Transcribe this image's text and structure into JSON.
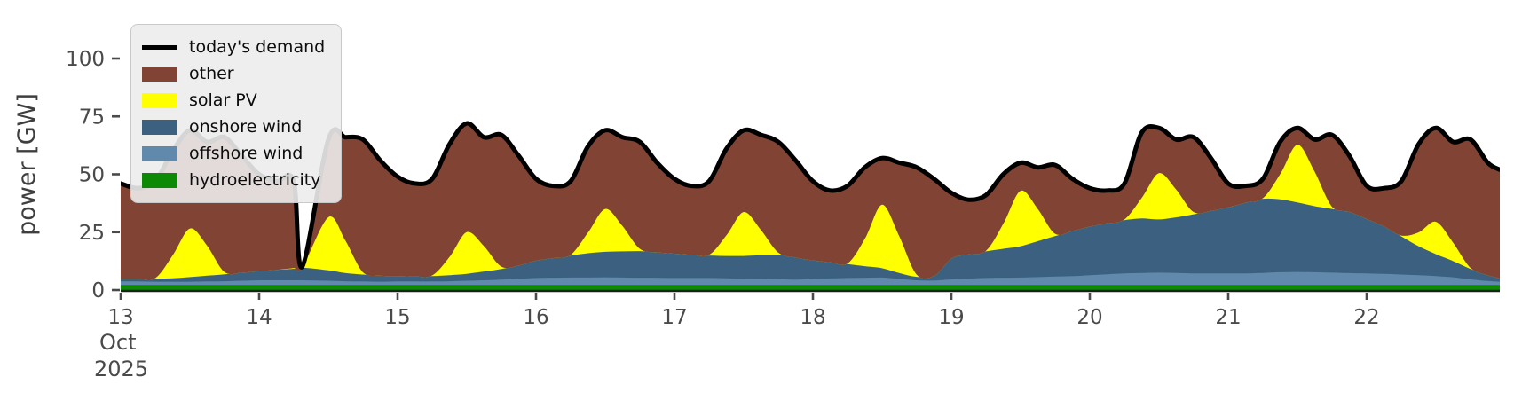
{
  "chart": {
    "ylabel": "power [GW]",
    "x_axis": {
      "month": "Oct",
      "year": "2025",
      "day_ticks": [
        13,
        14,
        15,
        16,
        17,
        18,
        19,
        20,
        21,
        22
      ]
    },
    "y_axis": {
      "ticks": [
        0,
        25,
        50,
        75,
        100
      ]
    },
    "legend": {
      "position": "upper left",
      "items": [
        {
          "label": "today's demand",
          "color": "#000000",
          "swatch": "line"
        },
        {
          "label": "other",
          "color": "#814334",
          "swatch": "rect"
        },
        {
          "label": "solar PV",
          "color": "#ffff00",
          "swatch": "rect"
        },
        {
          "label": "onshore wind",
          "color": "#3b6080",
          "swatch": "rect"
        },
        {
          "label": "offshore wind",
          "color": "#6089ac",
          "swatch": "rect"
        },
        {
          "label": "hydroelectricity",
          "color": "#0c8a06",
          "swatch": "rect"
        }
      ]
    },
    "text_color": "#4a4a4a"
  },
  "chart_data": {
    "type": "area",
    "stacked": true,
    "title": "",
    "xlabel": "",
    "ylabel": "power [GW]",
    "grid": false,
    "legend_position": "upper left",
    "x_unit": "day of October 2025",
    "x_range": [
      13,
      22.96
    ],
    "ylim": [
      0,
      121
    ],
    "note_gap": "all values drop to near zero briefly around Oct 14.31 (data gap notch)",
    "x": [
      13,
      13.125,
      13.25,
      13.375,
      13.5,
      13.625,
      13.75,
      13.875,
      14,
      14.125,
      14.25,
      14.31,
      14.5,
      14.625,
      14.75,
      14.875,
      15,
      15.125,
      15.25,
      15.375,
      15.5,
      15.625,
      15.75,
      15.875,
      16,
      16.125,
      16.25,
      16.375,
      16.5,
      16.625,
      16.75,
      16.875,
      17,
      17.125,
      17.25,
      17.375,
      17.5,
      17.625,
      17.75,
      17.875,
      18,
      18.125,
      18.25,
      18.375,
      18.5,
      18.625,
      18.75,
      18.875,
      19,
      19.125,
      19.25,
      19.375,
      19.5,
      19.625,
      19.75,
      19.875,
      20,
      20.125,
      20.25,
      20.375,
      20.5,
      20.625,
      20.75,
      20.875,
      21,
      21.125,
      21.25,
      21.375,
      21.5,
      21.625,
      21.75,
      21.875,
      22,
      22.125,
      22.25,
      22.375,
      22.5,
      22.625,
      22.75,
      22.875,
      22.96
    ],
    "demand": {
      "name": "today's demand",
      "color": "#000000",
      "values": [
        46,
        44,
        47,
        60,
        69,
        64,
        66,
        58,
        50,
        47,
        47,
        10,
        65,
        66,
        65,
        56,
        49,
        46,
        48,
        63,
        72,
        66,
        67,
        58,
        48,
        45,
        47,
        62,
        69,
        66,
        64,
        55,
        48,
        45,
        47,
        61,
        69,
        67,
        64,
        56,
        47,
        43,
        45,
        53,
        57,
        55,
        53,
        48,
        42,
        39,
        41,
        50,
        55,
        53,
        54,
        48,
        44,
        43,
        46,
        68,
        70,
        65,
        66,
        57,
        46,
        45,
        48,
        64,
        70,
        65,
        67,
        58,
        45,
        44,
        47,
        63,
        70,
        64,
        65,
        55,
        52
      ]
    },
    "stack_order_bottom_to_top": [
      "hydroelectricity",
      "offshore wind",
      "onshore wind",
      "solar PV",
      "other"
    ],
    "series": [
      {
        "name": "hydroelectricity",
        "color": "#0c8a06",
        "values": [
          2.4,
          2.4,
          2.4,
          2.4,
          2.4,
          2.4,
          2.4,
          2.4,
          2.4,
          2.4,
          2.4,
          2.4,
          2.4,
          2.4,
          2.4,
          2.4,
          2.4,
          2.4,
          2.4,
          2.4,
          2.4,
          2.4,
          2.4,
          2.4,
          2.4,
          2.4,
          2.4,
          2.4,
          2.4,
          2.4,
          2.4,
          2.4,
          2.4,
          2.4,
          2.4,
          2.4,
          2.4,
          2.4,
          2.4,
          2.4,
          2.4,
          2.4,
          2.4,
          2.4,
          2.4,
          2.4,
          2.4,
          2.4,
          2.4,
          2.4,
          2.4,
          2.4,
          2.4,
          2.4,
          2.4,
          2.4,
          2.4,
          2.4,
          2.4,
          2.4,
          2.4,
          2.4,
          2.4,
          2.4,
          2.4,
          2.4,
          2.4,
          2.4,
          2.4,
          2.4,
          2.4,
          2.4,
          2.4,
          2.4,
          2.4,
          2.4,
          2.4,
          2.4,
          2.4,
          2.4,
          2.4
        ]
      },
      {
        "name": "offshore wind",
        "color": "#6089ac",
        "values": [
          1.5,
          1.5,
          1.4,
          1.4,
          1.4,
          1.5,
          1.6,
          1.8,
          2,
          2,
          2,
          2,
          1.8,
          1.6,
          1.5,
          1.4,
          1.5,
          1.5,
          1.5,
          1.6,
          1.8,
          2,
          2.3,
          2.6,
          3,
          3.1,
          3.2,
          3.2,
          3.3,
          3.2,
          3.1,
          3.1,
          3,
          3,
          3,
          2.9,
          2.7,
          2.6,
          2.5,
          2.3,
          2.6,
          2.8,
          3,
          3.1,
          3.2,
          2.6,
          2,
          1.9,
          2.4,
          2.7,
          3,
          3.1,
          3.2,
          3.4,
          3.6,
          3.8,
          4.2,
          4.6,
          5,
          5.2,
          5.3,
          5.2,
          5,
          5,
          5,
          5,
          5.2,
          5.5,
          5.6,
          5.5,
          5.3,
          5.1,
          5,
          4.8,
          4.5,
          4.2,
          3.8,
          3.3,
          2.4,
          1.7,
          1.4
        ]
      },
      {
        "name": "onshore wind",
        "color": "#3b6080",
        "values": [
          1.2,
          1.2,
          1.3,
          1.5,
          2,
          2.5,
          3,
          3.5,
          4,
          4.5,
          5,
          5.5,
          4.5,
          3.5,
          3,
          2.6,
          2.4,
          2.2,
          2.3,
          2.6,
          3,
          3.8,
          4.6,
          5.8,
          7.5,
          8.5,
          9.5,
          10.5,
          11,
          11.3,
          11.5,
          11,
          10.5,
          10,
          9.7,
          9.6,
          9.8,
          10.2,
          10.5,
          9.5,
          8,
          7,
          6,
          5,
          4,
          2.5,
          1.5,
          2,
          9,
          10.5,
          11.5,
          12.5,
          13.5,
          15.5,
          17.5,
          19.5,
          21,
          22,
          23,
          23.5,
          23,
          24,
          25.5,
          27,
          28.5,
          30.5,
          32,
          31.5,
          30,
          28.5,
          27.5,
          26.5,
          23.5,
          20.5,
          16.5,
          12.5,
          9.5,
          7,
          4.5,
          2.5,
          1.5
        ]
      },
      {
        "name": "solar PV",
        "color": "#ffff00",
        "values": [
          0,
          0,
          0.3,
          10,
          21,
          13,
          1,
          0,
          0,
          0,
          0.3,
          0,
          23,
          14,
          1,
          0,
          0,
          0,
          0.3,
          8,
          18,
          11,
          1,
          0,
          0,
          0,
          0.3,
          9,
          18.5,
          11,
          1,
          0,
          0,
          0,
          0.3,
          9,
          19,
          11,
          1,
          0,
          0,
          0,
          0.3,
          12,
          27.5,
          16,
          1,
          0,
          0,
          0,
          0.3,
          11,
          24,
          14,
          1,
          0,
          0,
          0,
          0.3,
          9,
          20,
          12,
          1,
          0,
          0,
          0,
          0.3,
          11,
          25,
          15,
          1,
          0,
          0,
          0,
          0.3,
          6,
          14,
          8,
          0.5,
          0,
          0
        ]
      },
      {
        "name": "other",
        "color": "#814334",
        "derived": "demand_minus_sum_of_renewables"
      }
    ]
  }
}
